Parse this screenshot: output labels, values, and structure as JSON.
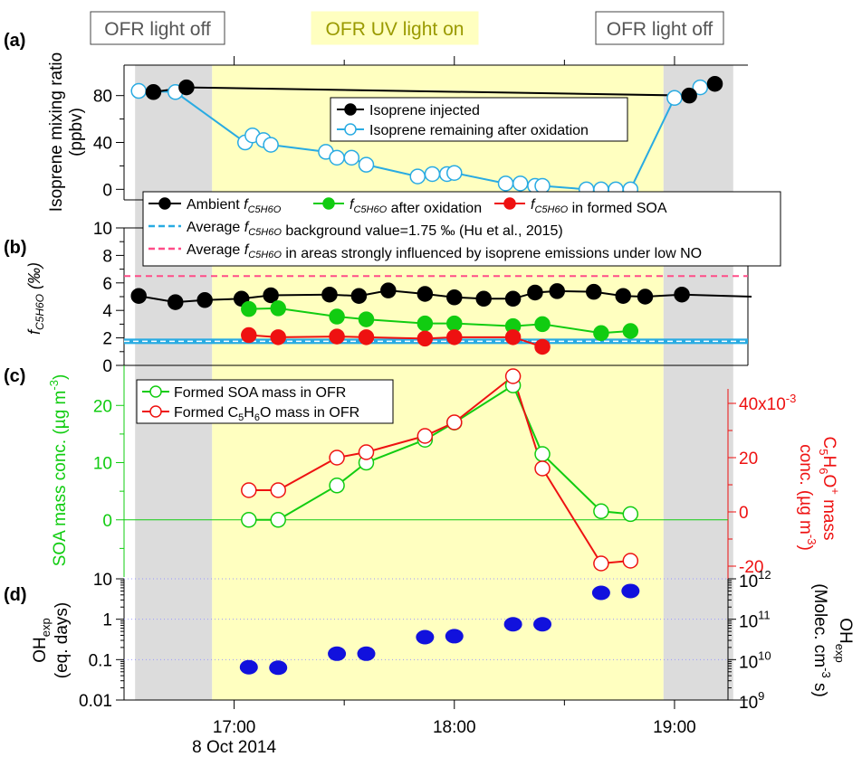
{
  "figure": {
    "phase_labels": [
      "OFR light off",
      "OFR UV light on",
      "OFR light off"
    ],
    "x_axis": {
      "ticks": [
        "17:00",
        "18:00",
        "19:00"
      ],
      "date": "8 Oct 2014"
    },
    "colors": {
      "grey": "#dcdcdc",
      "yellow": "#ffffc0",
      "black": "#000000",
      "cyan": "#29abe2",
      "green": "#11cc11",
      "red": "#ee1111",
      "pink": "#ff4d88",
      "blue": "#1111dd"
    }
  },
  "chart_data": [
    {
      "panel": "(a)",
      "type": "line",
      "ylabel": "Isoprene mixing ratio (ppbv)",
      "ylim": [
        -9,
        106
      ],
      "yticks": [
        "80",
        "40",
        "0"
      ],
      "time_range": [
        "16:30",
        "19:20"
      ],
      "shading": [
        {
          "from": "16:33",
          "to": "16:54",
          "color": "grey"
        },
        {
          "from": "16:54",
          "to": "18:57",
          "color": "yellow"
        },
        {
          "from": "18:57",
          "to": "19:16",
          "color": "grey"
        }
      ],
      "series": [
        {
          "name": "Isoprene injected",
          "style": "filled",
          "color": "black",
          "points": [
            [
              "16:38",
              83
            ],
            [
              "16:47",
              87
            ],
            [
              "19:04",
              80
            ],
            [
              "19:11",
              90
            ]
          ],
          "line": [
            [
              "16:38",
              83
            ],
            [
              "16:47",
              87
            ],
            [
              "19:04",
              80
            ],
            [
              "19:11",
              90
            ]
          ]
        },
        {
          "name": "Isoprene remaining after oxidation",
          "style": "open",
          "color": "cyan",
          "points": [
            [
              "16:34",
              84
            ],
            [
              "16:44",
              83
            ],
            [
              "17:03",
              40
            ],
            [
              "17:05",
              46
            ],
            [
              "17:08",
              42
            ],
            [
              "17:10",
              38
            ],
            [
              "17:25",
              32
            ],
            [
              "17:28",
              27
            ],
            [
              "17:32",
              27
            ],
            [
              "17:36",
              21
            ],
            [
              "17:50",
              11
            ],
            [
              "17:54",
              13
            ],
            [
              "17:58",
              13
            ],
            [
              "18:00",
              14
            ],
            [
              "18:14",
              5
            ],
            [
              "18:18",
              5
            ],
            [
              "18:22",
              3
            ],
            [
              "18:24",
              3
            ],
            [
              "18:36",
              0
            ],
            [
              "18:40",
              0
            ],
            [
              "18:44",
              0
            ],
            [
              "18:48",
              0
            ],
            [
              "19:00",
              78
            ],
            [
              "19:07",
              87
            ]
          ]
        }
      ]
    },
    {
      "panel": "(b)",
      "type": "line",
      "ylabel": "fC5H6O (‰)",
      "ylim": [
        0,
        10
      ],
      "yticks": [
        "10",
        "8",
        "6",
        "4",
        "2",
        "0"
      ],
      "series": [
        {
          "name": "Ambient fC5H6O",
          "label_parts": [
            "Ambient ",
            "fC5H6O"
          ],
          "style": "filled",
          "color": "black",
          "points": [
            [
              "16:34",
              5.05
            ],
            [
              "16:44",
              4.6
            ],
            [
              "16:52",
              4.75
            ],
            [
              "17:02",
              4.85
            ],
            [
              "17:10",
              5.1
            ],
            [
              "17:26",
              5.15
            ],
            [
              "17:34",
              5.05
            ],
            [
              "17:42",
              5.45
            ],
            [
              "17:52",
              5.2
            ],
            [
              "18:00",
              4.95
            ],
            [
              "18:08",
              4.85
            ],
            [
              "18:16",
              4.85
            ],
            [
              "18:22",
              5.3
            ],
            [
              "18:28",
              5.4
            ],
            [
              "18:38",
              5.35
            ],
            [
              "18:46",
              5.05
            ],
            [
              "18:52",
              5.0
            ],
            [
              "19:02",
              5.15
            ]
          ],
          "line_end": [
            "19:21",
            5.0
          ]
        },
        {
          "name": "fC5H6O after oxidation",
          "label_parts": [
            "fC5H6O",
            " after oxidation"
          ],
          "style": "filled",
          "color": "green",
          "points": [
            [
              "17:04",
              4.1
            ],
            [
              "17:12",
              4.15
            ],
            [
              "17:28",
              3.55
            ],
            [
              "17:36",
              3.35
            ],
            [
              "17:52",
              3.05
            ],
            [
              "18:00",
              3.05
            ],
            [
              "18:16",
              2.85
            ],
            [
              "18:24",
              3.0
            ],
            [
              "18:40",
              2.35
            ],
            [
              "18:48",
              2.5
            ]
          ]
        },
        {
          "name": "fC5H6O in formed SOA",
          "label_parts": [
            "fC5H6O",
            " in formed SOA"
          ],
          "style": "filled",
          "color": "red",
          "points": [
            [
              "17:04",
              2.2
            ],
            [
              "17:12",
              2.05
            ],
            [
              "17:28",
              2.1
            ],
            [
              "17:36",
              2.05
            ],
            [
              "17:52",
              1.95
            ],
            [
              "18:00",
              2.05
            ],
            [
              "18:16",
              2.05
            ],
            [
              "18:24",
              1.35
            ]
          ]
        },
        {
          "name": "Average fC5H6O background value=1.75 ‰ (Hu et al., 2015)",
          "label_parts": [
            "Average ",
            "fC5H6O",
            " background value=1.75 ‰ (Hu et al., 2015)"
          ],
          "style": "hline",
          "color": "cyan",
          "value": 1.75
        },
        {
          "name": "Average fC5H6O in areas strongly influenced by isoprene emissions under low NO",
          "label_parts": [
            "Average ",
            "fC5H6O",
            " in areas strongly influenced by isoprene emissions under low NO"
          ],
          "style": "hline",
          "color": "pink",
          "value": 6.5
        }
      ]
    },
    {
      "panel": "(c)",
      "type": "line",
      "ylabel_left": "SOA mass conc. (µg m-3)",
      "ylabel_right": "C5H6O+ mass conc. (µg m-3)",
      "ylim_left": [
        -10,
        27
      ],
      "yticks_left": [
        "20",
        "10",
        "0"
      ],
      "ylim_right": [
        -0.024,
        0.054
      ],
      "yticks_right": [
        "40x10-3",
        "20",
        "0",
        "-20"
      ],
      "series": [
        {
          "name": "Formed SOA mass in OFR",
          "axis": "left",
          "color": "green",
          "points": [
            [
              "17:04",
              0
            ],
            [
              "17:12",
              0
            ],
            [
              "17:28",
              6
            ],
            [
              "17:36",
              10
            ],
            [
              "17:52",
              14
            ],
            [
              "18:00",
              17
            ],
            [
              "18:16",
              23.5
            ],
            [
              "18:24",
              11.5
            ],
            [
              "18:40",
              1.5
            ],
            [
              "18:48",
              1
            ]
          ]
        },
        {
          "name": "Formed C5H6O mass in OFR",
          "axis": "right",
          "color": "red",
          "points": [
            [
              "17:04",
              0.008
            ],
            [
              "17:12",
              0.008
            ],
            [
              "17:28",
              0.02
            ],
            [
              "17:36",
              0.022
            ],
            [
              "17:52",
              0.028
            ],
            [
              "18:00",
              0.033
            ],
            [
              "18:16",
              0.05
            ],
            [
              "18:24",
              0.016
            ],
            [
              "18:40",
              -0.019
            ],
            [
              "18:48",
              -0.018
            ]
          ]
        }
      ]
    },
    {
      "panel": "(d)",
      "type": "scatter",
      "ylabel_left": "OHexp (eq. days)",
      "yscale": "log",
      "yticks_left": [
        "10",
        "1",
        "0.1",
        "0.01"
      ],
      "ylim_left": [
        0.01,
        10
      ],
      "ylabel_right": "OHexp (Molec. cm-3 s)",
      "yticks_right": [
        "10^12",
        "10^11",
        "10^10",
        "10^9"
      ],
      "series": [
        {
          "name": "OHexp",
          "color": "blue",
          "points": [
            [
              "17:04",
              0.065
            ],
            [
              "17:12",
              0.063
            ],
            [
              "17:28",
              0.14
            ],
            [
              "17:36",
              0.14
            ],
            [
              "17:52",
              0.36
            ],
            [
              "18:00",
              0.38
            ],
            [
              "18:16",
              0.75
            ],
            [
              "18:24",
              0.75
            ],
            [
              "18:40",
              4.5
            ],
            [
              "18:48",
              5.0
            ]
          ]
        }
      ]
    }
  ]
}
